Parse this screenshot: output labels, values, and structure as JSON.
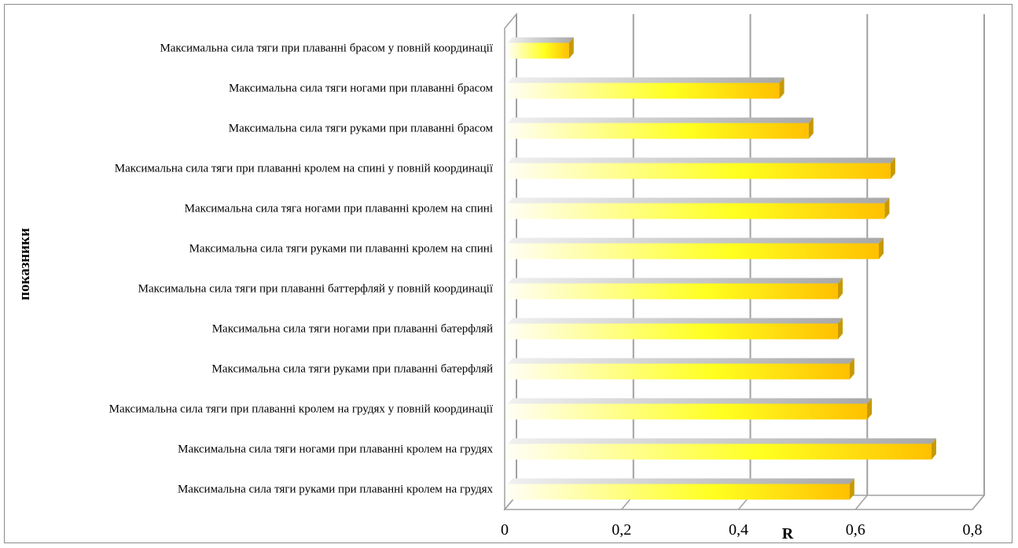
{
  "chart_data": {
    "type": "bar",
    "orientation": "horizontal",
    "style": "3d-clustered",
    "categories": [
      "Максимальна сила тяги при плаванні брасом у повній координації",
      "Максимальна сила тяги ногами при плаванні брасом",
      "Максимальна сила тяги руками при плаванні брасом",
      "Максимальна сила тяги при плаванні кролем на спині у повній координації",
      "Максимальна сила тяга ногами при плаванні кролем на спині",
      "Максимальна сила тяги руками пи плаванні кролем на спині",
      "Максимальна сила тяги при плаванні баттерфляй у повній координації",
      "Максимальна сила тяги ногами при плаванні батерфляй",
      "Максимальна сила тяги руками при плаванні батерфляй",
      "Максимальна сила тяги при плаванні кролем на грудях у повній координації",
      "Максимальна сила тяги ногами при плаванні кролем на грудях",
      "Максимальна сила тяги руками при плаванні кролем на грудях"
    ],
    "values": [
      0.11,
      0.47,
      0.52,
      0.66,
      0.65,
      0.64,
      0.57,
      0.57,
      0.59,
      0.62,
      0.73,
      0.59
    ],
    "xlabel": "R",
    "ylabel": "показники",
    "xlim": [
      0,
      0.8
    ],
    "xticks": [
      "0",
      "0,2",
      "0,4",
      "0,6",
      "0,8"
    ],
    "grid": true,
    "legend": "none",
    "colors": {
      "bar_light": "#fffbe6",
      "bar_mid": "#ffff00",
      "bar_dark": "#ffc000",
      "bar_top": "#b8b8b8",
      "bar_end": "#c79a00",
      "grid": "#a0a0a0"
    }
  }
}
